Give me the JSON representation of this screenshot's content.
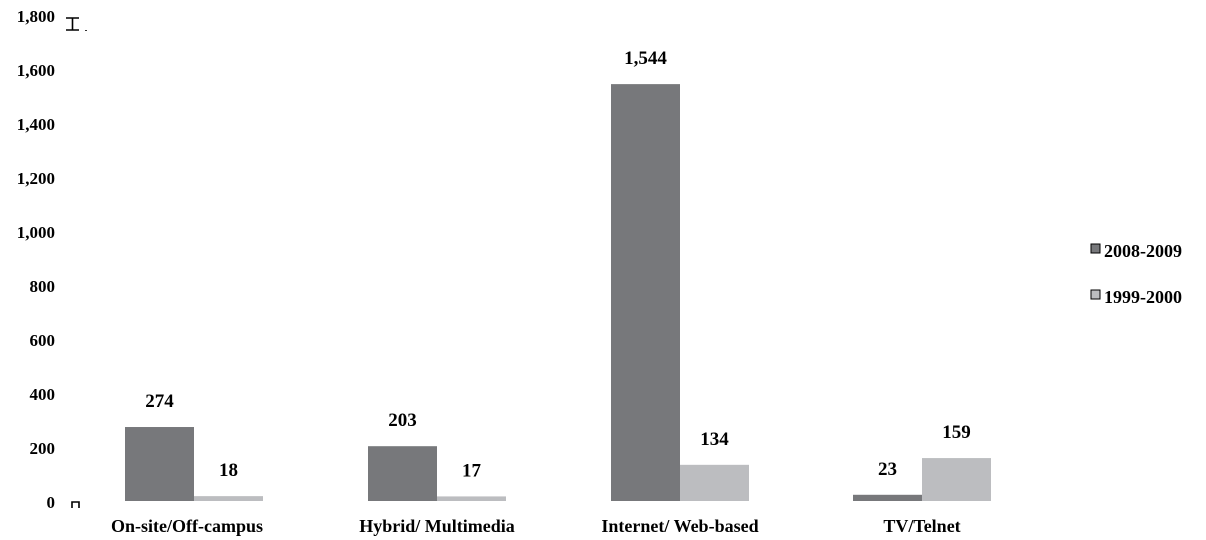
{
  "chart_data": {
    "type": "bar",
    "categories": [
      "On-site/Off-campus",
      "Hybrid/ Multimedia",
      "Internet/ Web-based",
      "TV/Telnet"
    ],
    "series": [
      {
        "name": "2008-2009",
        "values": [
          274,
          203,
          1544,
          23
        ],
        "labels": [
          "274",
          "203",
          "1,544",
          "23"
        ],
        "color": "#77787b"
      },
      {
        "name": "1999-2000",
        "values": [
          18,
          17,
          134,
          159
        ],
        "labels": [
          "18",
          "17",
          "134",
          "159"
        ],
        "color": "#bcbdc0"
      }
    ],
    "yticks": [
      "0",
      "200",
      "400",
      "600",
      "800",
      "1,000",
      "1,200",
      "1,400",
      "1,600",
      "1,800"
    ],
    "ylim": [
      0,
      1800
    ],
    "grid": false,
    "legend": "right"
  }
}
